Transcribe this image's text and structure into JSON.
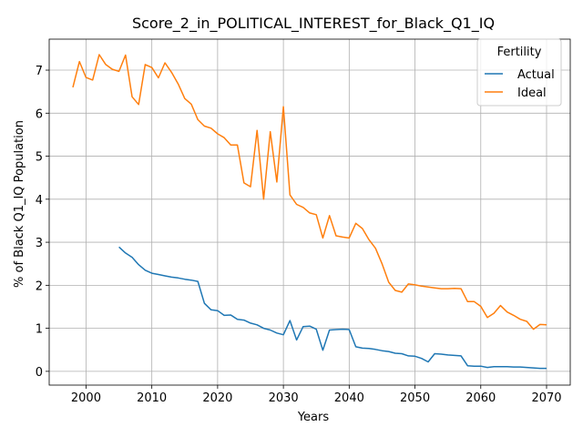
{
  "chart_data": {
    "type": "line",
    "title": "Score_2_in_POLITICAL_INTEREST_for_Black_Q1_IQ",
    "xlabel": "Years",
    "ylabel": "% of Black Q1_IQ Population",
    "xlim": [
      1994.4,
      2073.6
    ],
    "ylim": [
      -0.32,
      7.72
    ],
    "xticks": [
      2000,
      2010,
      2020,
      2030,
      2040,
      2050,
      2060,
      2070
    ],
    "yticks": [
      0,
      1,
      2,
      3,
      4,
      5,
      6,
      7
    ],
    "grid": true,
    "legend": {
      "title": "Fertility",
      "placement": "top-right"
    },
    "series": [
      {
        "name": "Actual",
        "color": "#1f77b4",
        "x": [
          2005,
          2006,
          2007,
          2008,
          2009,
          2010,
          2011,
          2012,
          2013,
          2014,
          2015,
          2016,
          2017,
          2018,
          2019,
          2020,
          2021,
          2022,
          2023,
          2024,
          2025,
          2026,
          2027,
          2028,
          2029,
          2030,
          2031,
          2032,
          2033,
          2034,
          2035,
          2036,
          2037,
          2038,
          2039,
          2040,
          2041,
          2042,
          2043,
          2044,
          2045,
          2046,
          2047,
          2048,
          2049,
          2050,
          2051,
          2052,
          2053,
          2054,
          2055,
          2056,
          2057,
          2058,
          2059,
          2060,
          2061,
          2062,
          2063,
          2064,
          2065,
          2066,
          2067,
          2068,
          2069,
          2070
        ],
        "values": [
          2.89,
          2.75,
          2.65,
          2.48,
          2.35,
          2.28,
          2.25,
          2.22,
          2.19,
          2.17,
          2.14,
          2.12,
          2.09,
          1.58,
          1.43,
          1.41,
          1.3,
          1.31,
          1.21,
          1.19,
          1.12,
          1.08,
          1.0,
          0.96,
          0.89,
          0.85,
          1.18,
          0.73,
          1.04,
          1.05,
          0.98,
          0.49,
          0.96,
          0.97,
          0.98,
          0.97,
          0.57,
          0.54,
          0.53,
          0.51,
          0.48,
          0.46,
          0.42,
          0.41,
          0.36,
          0.35,
          0.3,
          0.22,
          0.41,
          0.4,
          0.38,
          0.37,
          0.36,
          0.13,
          0.12,
          0.12,
          0.09,
          0.11,
          0.11,
          0.11,
          0.1,
          0.1,
          0.09,
          0.08,
          0.07,
          0.07
        ]
      },
      {
        "name": "Ideal",
        "color": "#ff7f0e",
        "x": [
          1998,
          1999,
          2000,
          2001,
          2002,
          2003,
          2004,
          2005,
          2006,
          2007,
          2008,
          2009,
          2010,
          2011,
          2012,
          2013,
          2014,
          2015,
          2016,
          2017,
          2018,
          2019,
          2020,
          2021,
          2022,
          2023,
          2024,
          2025,
          2026,
          2027,
          2028,
          2029,
          2030,
          2031,
          2032,
          2033,
          2034,
          2035,
          2036,
          2037,
          2038,
          2039,
          2040,
          2041,
          2042,
          2043,
          2044,
          2045,
          2046,
          2047,
          2048,
          2049,
          2050,
          2051,
          2052,
          2053,
          2054,
          2055,
          2056,
          2057,
          2058,
          2059,
          2060,
          2061,
          2062,
          2063,
          2064,
          2065,
          2066,
          2067,
          2068,
          2069,
          2070
        ],
        "values": [
          6.6,
          7.2,
          6.83,
          6.77,
          7.36,
          7.13,
          7.02,
          6.97,
          7.35,
          6.38,
          6.2,
          7.13,
          7.06,
          6.82,
          7.17,
          6.95,
          6.68,
          6.34,
          6.21,
          5.85,
          5.7,
          5.65,
          5.52,
          5.43,
          5.26,
          5.26,
          4.38,
          4.29,
          5.6,
          4.0,
          5.57,
          4.4,
          6.15,
          4.1,
          3.88,
          3.81,
          3.68,
          3.64,
          3.1,
          3.62,
          3.15,
          3.12,
          3.1,
          3.44,
          3.32,
          3.06,
          2.86,
          2.5,
          2.07,
          1.88,
          1.84,
          2.03,
          2.01,
          1.98,
          1.96,
          1.94,
          1.92,
          1.92,
          1.93,
          1.92,
          1.62,
          1.62,
          1.51,
          1.25,
          1.35,
          1.53,
          1.38,
          1.3,
          1.21,
          1.16,
          0.98,
          1.09,
          1.08
        ]
      }
    ]
  }
}
